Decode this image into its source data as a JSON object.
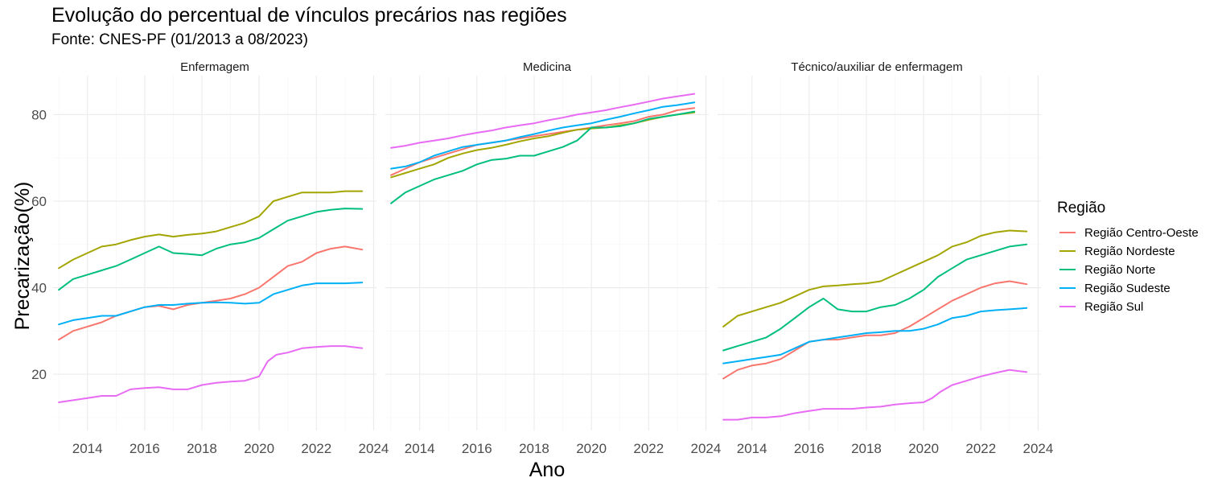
{
  "chart_data": {
    "type": "line",
    "title": "Evolução do percentual de vínculos precários nas regiões",
    "subtitle": "Fonte: CNES-PF (01/2013 a 08/2023)",
    "xlabel": "Ano",
    "ylabel": "Precarização(%)",
    "xlim": [
      2012.8,
      2024.1
    ],
    "ylim": [
      7,
      89
    ],
    "x_ticks": [
      2014,
      2016,
      2018,
      2020,
      2022,
      2024
    ],
    "y_ticks": [
      20,
      40,
      60,
      80
    ],
    "grid": true,
    "legend": {
      "title": "Região",
      "position": "right",
      "entries": [
        "Região Centro-Oeste",
        "Região Nordeste",
        "Região Norte",
        "Região Sudeste",
        "Região Sul"
      ]
    },
    "colors": {
      "Região Centro-Oeste": "#F8766D",
      "Região Nordeste": "#A3A500",
      "Região Norte": "#00BF7D",
      "Região Sudeste": "#00B0F6",
      "Região Sul": "#E76BF3"
    },
    "facets": [
      {
        "label": "Enfermagem",
        "series": [
          {
            "name": "Região Centro-Oeste",
            "x": [
              2013.0,
              2013.5,
              2014.0,
              2014.5,
              2015.0,
              2015.5,
              2016.0,
              2016.5,
              2017.0,
              2017.5,
              2018.0,
              2018.5,
              2019.0,
              2019.5,
              2020.0,
              2020.5,
              2021.0,
              2021.5,
              2022.0,
              2022.5,
              2023.0,
              2023.6
            ],
            "y": [
              28,
              30,
              31,
              32,
              33.5,
              34.5,
              35.5,
              35.8,
              35,
              36,
              36.5,
              37,
              37.5,
              38.5,
              40,
              42.5,
              45,
              46,
              48,
              49,
              49.5,
              48.8
            ]
          },
          {
            "name": "Região Nordeste",
            "x": [
              2013.0,
              2013.5,
              2014.0,
              2014.5,
              2015.0,
              2015.5,
              2016.0,
              2016.5,
              2017.0,
              2017.5,
              2018.0,
              2018.5,
              2019.0,
              2019.5,
              2020.0,
              2020.5,
              2021.0,
              2021.5,
              2022.0,
              2022.5,
              2023.0,
              2023.6
            ],
            "y": [
              44.5,
              46.5,
              48,
              49.5,
              50,
              51,
              51.8,
              52.3,
              51.8,
              52.2,
              52.5,
              53,
              54,
              55,
              56.5,
              60,
              61,
              62,
              62,
              62,
              62.3,
              62.3
            ]
          },
          {
            "name": "Região Norte",
            "x": [
              2013.0,
              2013.5,
              2014.0,
              2014.5,
              2015.0,
              2015.5,
              2016.0,
              2016.5,
              2017.0,
              2017.5,
              2018.0,
              2018.5,
              2019.0,
              2019.5,
              2020.0,
              2020.5,
              2021.0,
              2021.5,
              2022.0,
              2022.5,
              2023.0,
              2023.6
            ],
            "y": [
              39.5,
              42,
              43,
              44,
              45,
              46.5,
              48,
              49.5,
              48,
              47.8,
              47.5,
              49,
              50,
              50.5,
              51.5,
              53.5,
              55.5,
              56.5,
              57.5,
              58,
              58.3,
              58.2
            ]
          },
          {
            "name": "Região Sudeste",
            "x": [
              2013.0,
              2013.5,
              2014.0,
              2014.5,
              2015.0,
              2015.5,
              2016.0,
              2016.5,
              2017.0,
              2017.5,
              2018.0,
              2018.5,
              2019.0,
              2019.5,
              2020.0,
              2020.5,
              2021.0,
              2021.5,
              2022.0,
              2022.5,
              2023.0,
              2023.6
            ],
            "y": [
              31.5,
              32.5,
              33,
              33.5,
              33.5,
              34.5,
              35.5,
              36,
              36,
              36.3,
              36.5,
              36.6,
              36.5,
              36.3,
              36.5,
              38.5,
              39.5,
              40.5,
              41,
              41,
              41,
              41.2
            ]
          },
          {
            "name": "Região Sul",
            "x": [
              2013.0,
              2013.5,
              2014.0,
              2014.5,
              2015.0,
              2015.5,
              2016.0,
              2016.5,
              2017.0,
              2017.5,
              2018.0,
              2018.5,
              2019.0,
              2019.5,
              2020.0,
              2020.3,
              2020.6,
              2021.0,
              2021.5,
              2022.0,
              2022.5,
              2023.0,
              2023.6
            ],
            "y": [
              13.5,
              14,
              14.5,
              15,
              15,
              16.5,
              16.8,
              17,
              16.5,
              16.5,
              17.5,
              18,
              18.3,
              18.5,
              19.5,
              23,
              24.5,
              25,
              26,
              26.3,
              26.5,
              26.5,
              26
            ]
          }
        ]
      },
      {
        "label": "Medicina",
        "series": [
          {
            "name": "Região Centro-Oeste",
            "x": [
              2013.0,
              2013.5,
              2014.0,
              2014.5,
              2015.0,
              2015.5,
              2016.0,
              2016.5,
              2017.0,
              2017.5,
              2018.0,
              2018.5,
              2019.0,
              2019.5,
              2020.0,
              2020.5,
              2021.0,
              2021.5,
              2022.0,
              2022.5,
              2023.0,
              2023.6
            ],
            "y": [
              66,
              67.5,
              69,
              70,
              71,
              72,
              73,
              73.5,
              74,
              74.5,
              75,
              75.5,
              76,
              76.5,
              77,
              77.5,
              78,
              78.5,
              79.5,
              80,
              81,
              81.5
            ]
          },
          {
            "name": "Região Nordeste",
            "x": [
              2013.0,
              2013.5,
              2014.0,
              2014.5,
              2015.0,
              2015.5,
              2016.0,
              2016.5,
              2017.0,
              2017.5,
              2018.0,
              2018.5,
              2019.0,
              2019.5,
              2020.0,
              2020.5,
              2021.0,
              2021.5,
              2022.0,
              2022.5,
              2023.0,
              2023.6
            ],
            "y": [
              65.5,
              66.5,
              67.5,
              68.5,
              70,
              71,
              71.8,
              72.3,
              73,
              73.8,
              74.5,
              75,
              75.8,
              76.5,
              76.8,
              77,
              77.5,
              78,
              78.8,
              79.5,
              80,
              80.5
            ]
          },
          {
            "name": "Região Norte",
            "x": [
              2013.0,
              2013.5,
              2014.0,
              2014.5,
              2015.0,
              2015.5,
              2016.0,
              2016.5,
              2017.0,
              2017.5,
              2018.0,
              2018.5,
              2019.0,
              2019.5,
              2020.0,
              2020.5,
              2021.0,
              2021.5,
              2022.0,
              2022.5,
              2023.0,
              2023.6
            ],
            "y": [
              59.5,
              62,
              63.5,
              65,
              66,
              67,
              68.5,
              69.5,
              69.8,
              70.5,
              70.5,
              71.5,
              72.5,
              74,
              77,
              77,
              77.3,
              78,
              79,
              79.5,
              80,
              80.7
            ]
          },
          {
            "name": "Região Sudeste",
            "x": [
              2013.0,
              2013.5,
              2014.0,
              2014.5,
              2015.0,
              2015.5,
              2016.0,
              2016.5,
              2017.0,
              2017.5,
              2018.0,
              2018.5,
              2019.0,
              2019.5,
              2020.0,
              2020.5,
              2021.0,
              2021.5,
              2022.0,
              2022.5,
              2023.0,
              2023.6
            ],
            "y": [
              67.5,
              68,
              69,
              70.5,
              71.5,
              72.5,
              73,
              73.5,
              74,
              74.8,
              75.5,
              76.3,
              77,
              77.5,
              78,
              78.8,
              79.5,
              80.3,
              81,
              81.8,
              82.2,
              82.8
            ]
          },
          {
            "name": "Região Sul",
            "x": [
              2013.0,
              2013.5,
              2014.0,
              2014.5,
              2015.0,
              2015.5,
              2016.0,
              2016.5,
              2017.0,
              2017.5,
              2018.0,
              2018.5,
              2019.0,
              2019.5,
              2020.0,
              2020.5,
              2021.0,
              2021.5,
              2022.0,
              2022.5,
              2023.0,
              2023.6
            ],
            "y": [
              72.3,
              72.8,
              73.5,
              74,
              74.5,
              75.2,
              75.8,
              76.3,
              77,
              77.5,
              78,
              78.7,
              79.3,
              80,
              80.5,
              81,
              81.7,
              82.3,
              83,
              83.7,
              84.2,
              84.8
            ]
          }
        ]
      },
      {
        "label": "Técnico/auxiliar de enfermagem",
        "series": [
          {
            "name": "Região Centro-Oeste",
            "x": [
              2013.0,
              2013.5,
              2014.0,
              2014.5,
              2015.0,
              2015.5,
              2016.0,
              2016.5,
              2017.0,
              2017.5,
              2018.0,
              2018.5,
              2019.0,
              2019.5,
              2020.0,
              2020.5,
              2021.0,
              2021.5,
              2022.0,
              2022.5,
              2023.0,
              2023.6
            ],
            "y": [
              19,
              21,
              22,
              22.5,
              23.5,
              25.5,
              27.5,
              28,
              28,
              28.5,
              29,
              29,
              29.5,
              31,
              33,
              35,
              37,
              38.5,
              40,
              41,
              41.5,
              40.8
            ]
          },
          {
            "name": "Região Nordeste",
            "x": [
              2013.0,
              2013.5,
              2014.0,
              2014.5,
              2015.0,
              2015.5,
              2016.0,
              2016.5,
              2017.0,
              2017.5,
              2018.0,
              2018.5,
              2019.0,
              2019.5,
              2020.0,
              2020.5,
              2021.0,
              2021.5,
              2022.0,
              2022.5,
              2023.0,
              2023.6
            ],
            "y": [
              31,
              33.5,
              34.5,
              35.5,
              36.5,
              38,
              39.5,
              40.3,
              40.5,
              40.8,
              41,
              41.5,
              43,
              44.5,
              46,
              47.5,
              49.5,
              50.5,
              52,
              52.8,
              53.2,
              53
            ]
          },
          {
            "name": "Região Norte",
            "x": [
              2013.0,
              2013.5,
              2014.0,
              2014.5,
              2015.0,
              2015.5,
              2016.0,
              2016.5,
              2017.0,
              2017.5,
              2018.0,
              2018.5,
              2019.0,
              2019.5,
              2020.0,
              2020.5,
              2021.0,
              2021.5,
              2022.0,
              2022.5,
              2023.0,
              2023.6
            ],
            "y": [
              25.5,
              26.5,
              27.5,
              28.5,
              30.5,
              33,
              35.5,
              37.5,
              35,
              34.5,
              34.5,
              35.5,
              36,
              37.5,
              39.5,
              42.5,
              44.5,
              46.5,
              47.5,
              48.5,
              49.5,
              50
            ]
          },
          {
            "name": "Região Sudeste",
            "x": [
              2013.0,
              2013.5,
              2014.0,
              2014.5,
              2015.0,
              2015.5,
              2016.0,
              2016.5,
              2017.0,
              2017.5,
              2018.0,
              2018.5,
              2019.0,
              2019.5,
              2020.0,
              2020.5,
              2021.0,
              2021.5,
              2022.0,
              2022.5,
              2023.0,
              2023.6
            ],
            "y": [
              22.5,
              23,
              23.5,
              24,
              24.5,
              26,
              27.5,
              28,
              28.5,
              29,
              29.5,
              29.7,
              30,
              30,
              30.5,
              31.5,
              33,
              33.5,
              34.5,
              34.8,
              35,
              35.3
            ]
          },
          {
            "name": "Região Sul",
            "x": [
              2013.0,
              2013.5,
              2014.0,
              2014.5,
              2015.0,
              2015.5,
              2016.0,
              2016.5,
              2017.0,
              2017.5,
              2018.0,
              2018.5,
              2019.0,
              2019.5,
              2020.0,
              2020.3,
              2020.6,
              2021.0,
              2021.5,
              2022.0,
              2022.5,
              2023.0,
              2023.6
            ],
            "y": [
              9.5,
              9.5,
              10,
              10,
              10.3,
              11,
              11.5,
              12,
              12,
              12,
              12.3,
              12.5,
              13,
              13.3,
              13.5,
              14.5,
              16,
              17.5,
              18.5,
              19.5,
              20.3,
              21,
              20.5
            ]
          }
        ]
      }
    ]
  }
}
